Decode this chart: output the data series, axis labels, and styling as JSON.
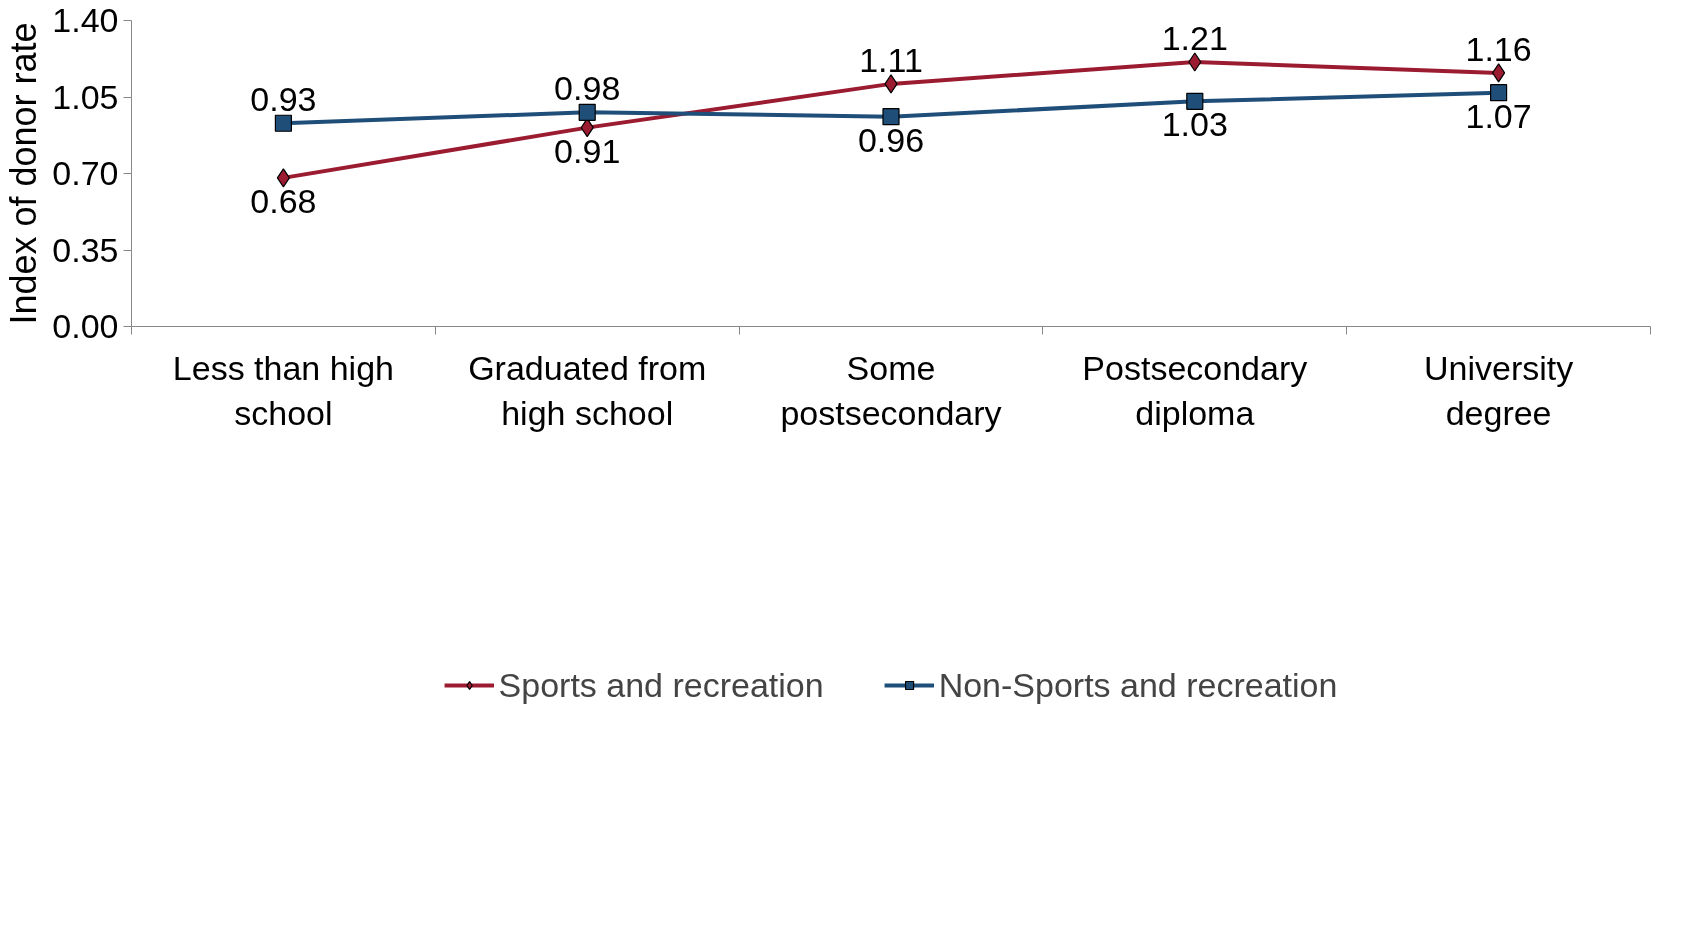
{
  "chart_data": {
    "type": "line",
    "ylabel": "Index of donor rate",
    "categories": [
      "Less than high school",
      "Graduated from high school",
      "Some postsecondary",
      "Postsecondary diploma",
      "University degree"
    ],
    "series": [
      {
        "name": "Sports and recreation",
        "color": "#9b1b30",
        "marker": "diamond",
        "values": [
          0.68,
          0.91,
          1.11,
          1.21,
          1.16
        ]
      },
      {
        "name": "Non-Sports and recreation",
        "color": "#1f4e79",
        "marker": "square",
        "values": [
          0.93,
          0.98,
          0.96,
          1.03,
          1.07
        ]
      }
    ],
    "ylim": [
      0,
      1.4
    ],
    "yticks": [
      "0.00",
      "0.35",
      "0.70",
      "1.05",
      "1.40"
    ],
    "data_labels": true,
    "legend": "bottom",
    "grid": false,
    "line_style": "solid"
  }
}
